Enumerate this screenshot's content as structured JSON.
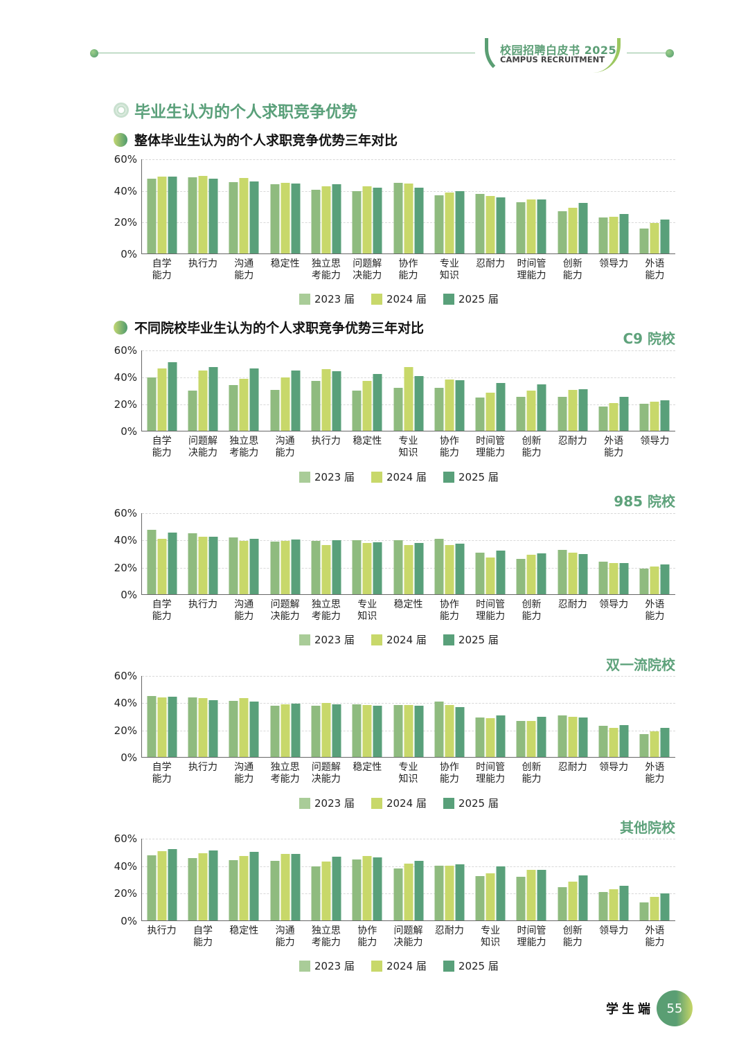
{
  "header": {
    "badge_title": "校园招聘白皮书 2025",
    "badge_subtitle": "CAMPUS RECRUITMENT"
  },
  "section_title": "毕业生认为的个人求职竞争优势",
  "subtitles": {
    "overall": "整体毕业生认为的个人求职竞争优势三年对比",
    "by_school": "不同院校毕业生认为的个人求职竞争优势三年对比"
  },
  "legend": [
    "2023 届",
    "2024 届",
    "2025 届"
  ],
  "colors": {
    "y2023": "#8fbb7f",
    "y2024": "#c8d86a",
    "y2025": "#59a07a",
    "accent": "#5aa07a"
  },
  "footer": {
    "label": "学生端",
    "page": "55"
  },
  "chart_data": [
    {
      "type": "bar",
      "title": "整体毕业生认为的个人求职竞争优势三年对比",
      "ylim": [
        0,
        60
      ],
      "yticks": [
        "60%",
        "40%",
        "20%",
        "0%"
      ],
      "grid": true,
      "legend_position": "bottom",
      "categories": [
        "自学\n能力",
        "执行力",
        "沟通\n能力",
        "稳定性",
        "独立思\n考能力",
        "问题解\n决能力",
        "协作\n能力",
        "专业\n知识",
        "忍耐力",
        "时间管\n理能力",
        "创新\n能力",
        "领导力",
        "外语\n能力"
      ],
      "series": [
        {
          "name": "2023 届",
          "values": [
            47.5,
            48.2,
            45.0,
            43.7,
            40.5,
            39.4,
            44.8,
            36.7,
            37.5,
            32.2,
            26.8,
            22.7,
            15.8
          ]
        },
        {
          "name": "2024 届",
          "values": [
            48.6,
            48.9,
            47.9,
            44.5,
            42.6,
            42.6,
            44.3,
            38.5,
            36.4,
            34.1,
            28.7,
            23.0,
            19.2
          ]
        },
        {
          "name": "2025 届",
          "values": [
            48.5,
            47.5,
            45.5,
            44.2,
            43.6,
            41.8,
            41.6,
            39.4,
            35.7,
            34.1,
            32.0,
            24.9,
            21.3
          ]
        }
      ]
    },
    {
      "type": "bar",
      "title": "C9 院校",
      "ylim": [
        0,
        60
      ],
      "yticks": [
        "60%",
        "40%",
        "20%",
        "0%"
      ],
      "grid": true,
      "legend_position": "bottom",
      "categories": [
        "自学\n能力",
        "问题解\n决能力",
        "独立思\n考能力",
        "沟通\n能力",
        "执行力",
        "稳定性",
        "专业\n知识",
        "协作\n能力",
        "时间管\n理能力",
        "创新\n能力",
        "忍耐力",
        "外语\n能力",
        "领导力"
      ],
      "series": [
        {
          "name": "2023 届",
          "values": [
            39.5,
            29.5,
            33.8,
            30.5,
            36.7,
            30.0,
            31.7,
            31.7,
            24.8,
            25.2,
            25.2,
            18.0,
            19.9
          ]
        },
        {
          "name": "2024 届",
          "values": [
            46.3,
            44.6,
            38.4,
            39.5,
            45.7,
            36.7,
            47.4,
            37.9,
            28.2,
            29.9,
            30.3,
            20.6,
            21.6
          ]
        },
        {
          "name": "2025 届",
          "values": [
            51.0,
            47.2,
            46.2,
            44.6,
            44.2,
            42.3,
            40.7,
            37.6,
            35.6,
            34.2,
            30.6,
            25.3,
            22.8
          ]
        }
      ]
    },
    {
      "type": "bar",
      "title": "985 院校",
      "ylim": [
        0,
        60
      ],
      "yticks": [
        "60%",
        "40%",
        "20%",
        "0%"
      ],
      "grid": true,
      "legend_position": "bottom",
      "categories": [
        "自学\n能力",
        "执行力",
        "沟通\n能力",
        "问题解\n决能力",
        "独立思\n考能力",
        "专业\n知识",
        "稳定性",
        "协作\n能力",
        "时间管\n理能力",
        "创新\n能力",
        "忍耐力",
        "领导力",
        "外语\n能力"
      ],
      "series": [
        {
          "name": "2023 届",
          "values": [
            47.2,
            45.0,
            41.5,
            38.5,
            39.0,
            39.5,
            39.8,
            40.5,
            30.3,
            25.8,
            32.5,
            23.8,
            18.7
          ]
        },
        {
          "name": "2024 届",
          "values": [
            40.5,
            42.3,
            39.2,
            39.0,
            36.2,
            37.8,
            36.2,
            36.3,
            27.2,
            29.0,
            30.3,
            23.1,
            20.2
          ]
        },
        {
          "name": "2025 届",
          "values": [
            45.2,
            42.0,
            40.8,
            40.3,
            39.8,
            38.2,
            37.7,
            37.3,
            32.2,
            30.0,
            29.3,
            22.7,
            22.0
          ]
        }
      ]
    },
    {
      "type": "bar",
      "title": "双一流院校",
      "ylim": [
        0,
        60
      ],
      "yticks": [
        "60%",
        "40%",
        "20%",
        "0%"
      ],
      "grid": true,
      "legend_position": "bottom",
      "categories": [
        "自学\n能力",
        "执行力",
        "沟通\n能力",
        "独立思\n考能力",
        "问题解\n决能力",
        "稳定性",
        "专业\n知识",
        "协作\n能力",
        "时间管\n理能力",
        "创新\n能力",
        "忍耐力",
        "领导力",
        "外语\n能力"
      ],
      "series": [
        {
          "name": "2023 届",
          "values": [
            45.0,
            43.9,
            41.2,
            37.6,
            37.6,
            38.4,
            38.0,
            40.5,
            29.0,
            26.2,
            30.4,
            22.7,
            16.9
          ]
        },
        {
          "name": "2024 届",
          "values": [
            43.7,
            43.0,
            43.2,
            38.4,
            39.7,
            38.2,
            38.2,
            38.0,
            28.7,
            26.2,
            29.3,
            21.3,
            18.8
          ]
        },
        {
          "name": "2025 届",
          "values": [
            44.4,
            41.9,
            40.8,
            39.2,
            38.6,
            37.8,
            37.7,
            36.4,
            30.7,
            29.7,
            29.2,
            23.3,
            21.3
          ]
        }
      ]
    },
    {
      "type": "bar",
      "title": "其他院校",
      "ylim": [
        0,
        60
      ],
      "yticks": [
        "60%",
        "40%",
        "20%",
        "0%"
      ],
      "grid": true,
      "legend_position": "bottom",
      "categories": [
        "执行力",
        "自学\n能力",
        "稳定性",
        "沟通\n能力",
        "独立思\n考能力",
        "协作\n能力",
        "问题解\n决能力",
        "忍耐力",
        "专业\n知识",
        "时间管\n理能力",
        "创新\n能力",
        "领导力",
        "外语\n能力"
      ],
      "series": [
        {
          "name": "2023 届",
          "values": [
            47.6,
            45.2,
            43.9,
            43.5,
            39.3,
            44.6,
            37.6,
            39.6,
            32.4,
            31.7,
            24.4,
            20.6,
            13.1
          ]
        },
        {
          "name": "2024 届",
          "values": [
            50.5,
            49.1,
            46.9,
            48.3,
            43.1,
            47.1,
            41.5,
            40.0,
            34.5,
            36.7,
            28.0,
            22.8,
            17.2
          ]
        },
        {
          "name": "2025 届",
          "values": [
            51.8,
            51.0,
            49.7,
            48.5,
            46.3,
            45.8,
            43.6,
            41.0,
            39.1,
            36.6,
            33.0,
            25.2,
            19.9
          ]
        }
      ]
    }
  ]
}
